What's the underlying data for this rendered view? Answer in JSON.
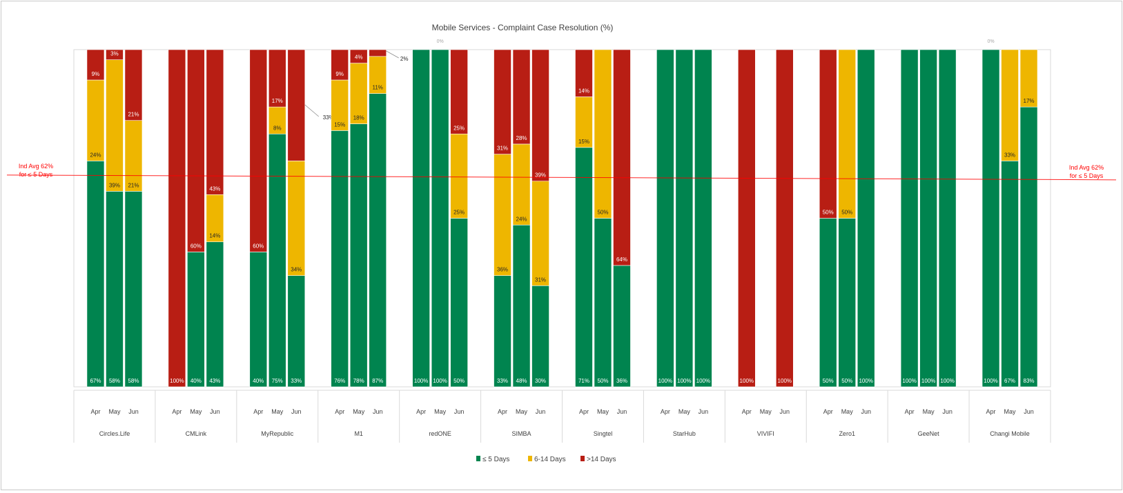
{
  "chart_data": {
    "type": "bar",
    "stacked": true,
    "title": "Mobile Services - Complaint Case Resolution (%)",
    "xlabel": "",
    "ylabel": "",
    "ylim": [
      0,
      100
    ],
    "grid": false,
    "legend_position": "bottom",
    "colors": {
      "le5": "#00844f",
      "d6to14": "#eeb600",
      "gt14": "#b81e14",
      "avg_line": "#ff0000"
    },
    "groups": [
      "Circles.Life",
      "CMLink",
      "MyRepublic",
      "M1",
      "redONE",
      "SIMBA",
      "Singtel",
      "StarHub",
      "VIVIFI",
      "Zero1",
      "GeeNet",
      "Changi Mobile"
    ],
    "months": [
      "Apr",
      "May",
      "Jun"
    ],
    "series": [
      {
        "name": "≤ 5 Days",
        "key": "le5",
        "values": [
          [
            67,
            58,
            58
          ],
          [
            0,
            40,
            43
          ],
          [
            40,
            75,
            33
          ],
          [
            76,
            78,
            87
          ],
          [
            100,
            100,
            50
          ],
          [
            33,
            48,
            30
          ],
          [
            71,
            50,
            36
          ],
          [
            100,
            100,
            100
          ],
          [
            0,
            null,
            0
          ],
          [
            50,
            50,
            100
          ],
          [
            100,
            100,
            100
          ],
          [
            100,
            67,
            83
          ]
        ]
      },
      {
        "name": "6-14 Days",
        "key": "d6to14",
        "values": [
          [
            24,
            39,
            21
          ],
          [
            0,
            0,
            14
          ],
          [
            0,
            8,
            34
          ],
          [
            15,
            18,
            11
          ],
          [
            0,
            0,
            25
          ],
          [
            36,
            24,
            31
          ],
          [
            15,
            50,
            0
          ],
          [
            0,
            0,
            0
          ],
          [
            0,
            null,
            0
          ],
          [
            0,
            50,
            0
          ],
          [
            0,
            0,
            0
          ],
          [
            0,
            33,
            17
          ]
        ]
      },
      {
        "name": ">14 Days",
        "key": "gt14",
        "values": [
          [
            9,
            3,
            21
          ],
          [
            100,
            60,
            43
          ],
          [
            60,
            17,
            33
          ],
          [
            9,
            4,
            2
          ],
          [
            0,
            0,
            25
          ],
          [
            31,
            28,
            39
          ],
          [
            14,
            0,
            64
          ],
          [
            0,
            0,
            0
          ],
          [
            100,
            null,
            100
          ],
          [
            50,
            0,
            0
          ],
          [
            0,
            0,
            0
          ],
          [
            0,
            0,
            0
          ]
        ]
      }
    ],
    "zero_labels": [
      {
        "group": "redONE",
        "month": "May",
        "text": "0%"
      },
      {
        "group": "Changi Mobile",
        "month": "Apr",
        "text": "0%"
      }
    ],
    "reference_line": {
      "value": 62,
      "label_line1": "Ind Avg 62%",
      "label_line2": "for ≤ 5 Days"
    }
  }
}
